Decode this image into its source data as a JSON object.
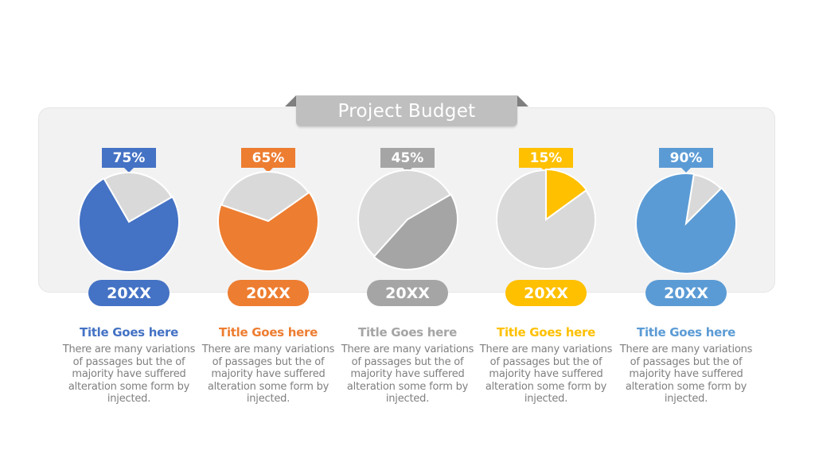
{
  "title": "Project Budget",
  "chart_data": {
    "type": "pie",
    "title": "Project Budget",
    "remainder_color": "#d9d9d9",
    "items": [
      {
        "label": "20XX",
        "percent": 75,
        "percent_label": "75%",
        "color": "#4472c4",
        "heading": "Title Goes here",
        "body": "There are many variations of passages but the of majority have suffered alteration some form by injected."
      },
      {
        "label": "20XX",
        "percent": 65,
        "percent_label": "65%",
        "color": "#ed7d31",
        "heading": "Title Goes here",
        "body": "There are many variations of passages but the of majority have suffered alteration some form by injected."
      },
      {
        "label": "20XX",
        "percent": 45,
        "percent_label": "45%",
        "color": "#a5a5a5",
        "heading": "Title Goes here",
        "body": "There are many variations of passages but the of majority have suffered alteration some form by injected."
      },
      {
        "label": "20XX",
        "percent": 15,
        "percent_label": "15%",
        "color": "#ffc000",
        "heading": "Title Goes here",
        "body": "There are many variations of passages but the of majority have suffered alteration some form by injected."
      },
      {
        "label": "20XX",
        "percent": 90,
        "percent_label": "90%",
        "color": "#5b9bd5",
        "heading": "Title Goes here",
        "body": "There are many variations of passages but the of majority have suffered alteration some form by injected."
      }
    ]
  }
}
